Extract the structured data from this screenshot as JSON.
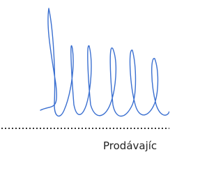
{
  "signature_block": {
    "label": "Prodávajíc"
  }
}
